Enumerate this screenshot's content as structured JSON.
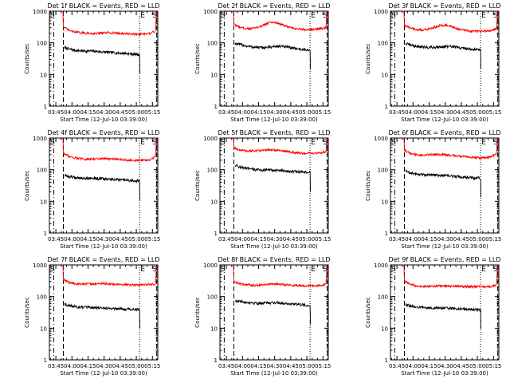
{
  "figure": {
    "colors": {
      "background": "#ffffff",
      "axes": "#000000",
      "events": "#000000",
      "lld": "#ff0000"
    },
    "markers": [
      "S",
      "E",
      "S"
    ]
  },
  "chart_data": [
    {
      "type": "line",
      "title": "Det 1f BLACK = Events, RED = LLD",
      "xlabel": "Start Time (12-Jul-10 03:39:00)",
      "ylabel": "Counts/sec",
      "x_ticks": [
        "03:45",
        "04:00",
        "04:15",
        "04:30",
        "04:45",
        "05:00",
        "05:15"
      ],
      "y_ticks": [
        "1",
        "10",
        "100",
        "1000"
      ],
      "xlim_minutes": [
        0,
        101
      ],
      "ylim": [
        1,
        1000
      ],
      "yscale": "log",
      "vlines_minutes": [
        {
          "x": 4,
          "style": "dash-dot"
        },
        {
          "x": 13,
          "style": "dashed"
        },
        {
          "x": 84,
          "style": "dotted"
        },
        {
          "x": 100,
          "style": "dashed"
        }
      ],
      "series": [
        {
          "name": "Events",
          "color": "#000000",
          "x_range": [
            14,
            84
          ],
          "profile": [
            70,
            63,
            58,
            56,
            55,
            55,
            54,
            52,
            50,
            49,
            48,
            47,
            45,
            44,
            43
          ]
        },
        {
          "name": "LLD",
          "color": "#ff0000",
          "x_range": [
            13,
            99
          ],
          "profile": [
            320,
            250,
            225,
            210,
            205,
            200,
            198,
            200,
            205,
            210,
            205,
            200,
            195,
            190,
            188,
            188,
            190,
            195,
            240
          ]
        }
      ]
    },
    {
      "type": "line",
      "title": "Det 2f BLACK = Events, RED = LLD",
      "xlabel": "Start Time (12-Jul-10 03:39:00)",
      "ylabel": "Counts/sec",
      "x_ticks": [
        "03:45",
        "04:00",
        "04:15",
        "04:30",
        "04:45",
        "05:00",
        "05:15"
      ],
      "y_ticks": [
        "1",
        "10",
        "100",
        "1000"
      ],
      "xlim_minutes": [
        0,
        101
      ],
      "ylim": [
        1,
        1000
      ],
      "yscale": "log",
      "vlines_minutes": [
        {
          "x": 4,
          "style": "dash-dot"
        },
        {
          "x": 13,
          "style": "dashed"
        },
        {
          "x": 84,
          "style": "dotted"
        },
        {
          "x": 100,
          "style": "dashed"
        }
      ],
      "series": [
        {
          "name": "Events",
          "color": "#000000",
          "x_range": [
            14,
            84
          ],
          "profile": [
            95,
            88,
            80,
            75,
            72,
            70,
            72,
            75,
            78,
            76,
            72,
            68,
            64,
            60,
            58
          ]
        },
        {
          "name": "LLD",
          "color": "#ff0000",
          "x_range": [
            13,
            99
          ],
          "profile": [
            380,
            320,
            290,
            280,
            290,
            320,
            380,
            440,
            450,
            400,
            340,
            300,
            280,
            270,
            265,
            265,
            270,
            280,
            300
          ]
        }
      ]
    },
    {
      "type": "line",
      "title": "Det 3f BLACK = Events, RED = LLD",
      "xlabel": "Start Time (12-Jul-10 03:39:00)",
      "ylabel": "Counts/sec",
      "x_ticks": [
        "03:45",
        "04:00",
        "04:15",
        "04:30",
        "04:45",
        "05:00",
        "05:15"
      ],
      "y_ticks": [
        "1",
        "10",
        "100",
        "1000"
      ],
      "xlim_minutes": [
        0,
        101
      ],
      "ylim": [
        1,
        1000
      ],
      "yscale": "log",
      "vlines_minutes": [
        {
          "x": 4,
          "style": "dash-dot"
        },
        {
          "x": 13,
          "style": "dashed"
        },
        {
          "x": 84,
          "style": "dotted"
        },
        {
          "x": 100,
          "style": "dashed"
        }
      ],
      "series": [
        {
          "name": "Events",
          "color": "#000000",
          "x_range": [
            14,
            84
          ],
          "profile": [
            95,
            85,
            78,
            74,
            72,
            72,
            74,
            76,
            76,
            74,
            70,
            67,
            64,
            62,
            60
          ]
        },
        {
          "name": "LLD",
          "color": "#ff0000",
          "x_range": [
            13,
            99
          ],
          "profile": [
            360,
            300,
            270,
            255,
            260,
            280,
            320,
            360,
            360,
            330,
            290,
            260,
            245,
            235,
            230,
            230,
            235,
            245,
            280
          ]
        }
      ]
    },
    {
      "type": "line",
      "title": "Det 4f BLACK = Events, RED = LLD",
      "xlabel": "Start Time (12-Jul-10 03:39:00)",
      "ylabel": "Counts/sec",
      "x_ticks": [
        "03:45",
        "04:00",
        "04:15",
        "04:30",
        "04:45",
        "05:00",
        "05:15"
      ],
      "y_ticks": [
        "1",
        "10",
        "100",
        "1000"
      ],
      "xlim_minutes": [
        0,
        101
      ],
      "ylim": [
        1,
        1000
      ],
      "yscale": "log",
      "vlines_minutes": [
        {
          "x": 4,
          "style": "dash-dot"
        },
        {
          "x": 13,
          "style": "dashed"
        },
        {
          "x": 84,
          "style": "dotted"
        },
        {
          "x": 100,
          "style": "dashed"
        }
      ],
      "series": [
        {
          "name": "Events",
          "color": "#000000",
          "x_range": [
            14,
            84
          ],
          "profile": [
            65,
            60,
            57,
            55,
            54,
            54,
            53,
            52,
            50,
            49,
            48,
            47,
            46,
            45,
            44
          ]
        },
        {
          "name": "LLD",
          "color": "#ff0000",
          "x_range": [
            13,
            99
          ],
          "profile": [
            330,
            270,
            240,
            225,
            215,
            215,
            220,
            225,
            225,
            220,
            215,
            210,
            205,
            200,
            198,
            198,
            200,
            205,
            260
          ]
        }
      ]
    },
    {
      "type": "line",
      "title": "Det 5f BLACK = Events, RED = LLD",
      "xlabel": "Start Time (12-Jul-10 03:39:00)",
      "ylabel": "Counts/sec",
      "x_ticks": [
        "03:45",
        "04:00",
        "04:15",
        "04:30",
        "04:45",
        "05:00",
        "05:15"
      ],
      "y_ticks": [
        "1",
        "10",
        "100",
        "1000"
      ],
      "xlim_minutes": [
        0,
        101
      ],
      "ylim": [
        1,
        1000
      ],
      "yscale": "log",
      "vlines_minutes": [
        {
          "x": 4,
          "style": "dash-dot"
        },
        {
          "x": 13,
          "style": "dashed"
        },
        {
          "x": 84,
          "style": "dotted"
        },
        {
          "x": 100,
          "style": "dashed"
        }
      ],
      "series": [
        {
          "name": "Events",
          "color": "#000000",
          "x_range": [
            14,
            84
          ],
          "profile": [
            140,
            120,
            110,
            104,
            100,
            98,
            98,
            96,
            94,
            92,
            90,
            88,
            86,
            84,
            82
          ]
        },
        {
          "name": "LLD",
          "color": "#ff0000",
          "x_range": [
            13,
            99
          ],
          "profile": [
            500,
            430,
            400,
            390,
            390,
            400,
            420,
            430,
            420,
            400,
            380,
            360,
            345,
            335,
            330,
            330,
            335,
            345,
            370
          ]
        }
      ]
    },
    {
      "type": "line",
      "title": "Det 6f BLACK = Events, RED = LLD",
      "xlabel": "Start Time (12-Jul-10 03:39:00)",
      "ylabel": "Counts/sec",
      "x_ticks": [
        "03:45",
        "04:00",
        "04:15",
        "04:30",
        "04:45",
        "05:00",
        "05:15"
      ],
      "y_ticks": [
        "1",
        "10",
        "100",
        "1000"
      ],
      "xlim_minutes": [
        0,
        101
      ],
      "ylim": [
        1,
        1000
      ],
      "yscale": "log",
      "vlines_minutes": [
        {
          "x": 4,
          "style": "dash-dot"
        },
        {
          "x": 13,
          "style": "dashed"
        },
        {
          "x": 84,
          "style": "dotted"
        },
        {
          "x": 100,
          "style": "dashed"
        }
      ],
      "series": [
        {
          "name": "Events",
          "color": "#000000",
          "x_range": [
            14,
            84
          ],
          "profile": [
            90,
            78,
            72,
            70,
            68,
            68,
            68,
            66,
            64,
            62,
            60,
            58,
            56,
            55,
            54
          ]
        },
        {
          "name": "LLD",
          "color": "#ff0000",
          "x_range": [
            13,
            99
          ],
          "profile": [
            420,
            330,
            300,
            290,
            290,
            295,
            300,
            300,
            295,
            285,
            275,
            265,
            255,
            245,
            240,
            240,
            245,
            255,
            330
          ]
        }
      ]
    },
    {
      "type": "line",
      "title": "Det 7f BLACK = Events, RED = LLD",
      "xlabel": "Start Time (12-Jul-10 03:39:00)",
      "ylabel": "Counts/sec",
      "x_ticks": [
        "03:45",
        "04:00",
        "04:15",
        "04:30",
        "04:45",
        "05:00",
        "05:15"
      ],
      "y_ticks": [
        "1",
        "10",
        "100",
        "1000"
      ],
      "xlim_minutes": [
        0,
        101
      ],
      "ylim": [
        1,
        1000
      ],
      "yscale": "log",
      "vlines_minutes": [
        {
          "x": 4,
          "style": "dash-dot"
        },
        {
          "x": 13,
          "style": "dashed"
        },
        {
          "x": 84,
          "style": "dotted"
        },
        {
          "x": 100,
          "style": "dashed"
        }
      ],
      "series": [
        {
          "name": "Events",
          "color": "#000000",
          "x_range": [
            14,
            84
          ],
          "profile": [
            58,
            52,
            48,
            46,
            45,
            45,
            44,
            44,
            43,
            42,
            42,
            41,
            40,
            40,
            39
          ]
        },
        {
          "name": "LLD",
          "color": "#ff0000",
          "x_range": [
            13,
            99
          ],
          "profile": [
            340,
            280,
            260,
            250,
            248,
            250,
            255,
            258,
            255,
            250,
            245,
            240,
            238,
            236,
            235,
            235,
            238,
            242,
            250
          ]
        }
      ]
    },
    {
      "type": "line",
      "title": "Det 8f BLACK = Events, RED = LLD",
      "xlabel": "Start Time (12-Jul-10 03:39:00)",
      "ylabel": "Counts/sec",
      "x_ticks": [
        "03:45",
        "04:00",
        "04:15",
        "04:30",
        "04:45",
        "05:00",
        "05:15"
      ],
      "y_ticks": [
        "1",
        "10",
        "100",
        "1000"
      ],
      "xlim_minutes": [
        0,
        101
      ],
      "ylim": [
        1,
        1000
      ],
      "yscale": "log",
      "vlines_minutes": [
        {
          "x": 4,
          "style": "dash-dot"
        },
        {
          "x": 13,
          "style": "dashed"
        },
        {
          "x": 84,
          "style": "dotted"
        },
        {
          "x": 100,
          "style": "dashed"
        }
      ],
      "series": [
        {
          "name": "Events",
          "color": "#000000",
          "x_range": [
            14,
            84
          ],
          "profile": [
            75,
            70,
            66,
            64,
            62,
            62,
            63,
            64,
            64,
            62,
            60,
            58,
            56,
            54,
            52
          ]
        },
        {
          "name": "LLD",
          "color": "#ff0000",
          "x_range": [
            13,
            99
          ],
          "profile": [
            300,
            260,
            240,
            232,
            230,
            232,
            240,
            250,
            250,
            245,
            238,
            230,
            225,
            222,
            220,
            220,
            222,
            228,
            240
          ]
        }
      ]
    },
    {
      "type": "line",
      "title": "Det 9f BLACK = Events, RED = LLD",
      "xlabel": "Start Time (12-Jul-10 03:39:00)",
      "ylabel": "Counts/sec",
      "x_ticks": [
        "03:45",
        "04:00",
        "04:15",
        "04:30",
        "04:45",
        "05:00",
        "05:15"
      ],
      "y_ticks": [
        "1",
        "10",
        "100",
        "1000"
      ],
      "xlim_minutes": [
        0,
        101
      ],
      "ylim": [
        1,
        1000
      ],
      "yscale": "log",
      "vlines_minutes": [
        {
          "x": 4,
          "style": "dash-dot"
        },
        {
          "x": 13,
          "style": "dashed"
        },
        {
          "x": 84,
          "style": "dotted"
        },
        {
          "x": 100,
          "style": "dashed"
        }
      ],
      "series": [
        {
          "name": "Events",
          "color": "#000000",
          "x_range": [
            14,
            84
          ],
          "profile": [
            55,
            50,
            47,
            45,
            44,
            44,
            44,
            43,
            42,
            42,
            41,
            40,
            40,
            39,
            38
          ]
        },
        {
          "name": "LLD",
          "color": "#ff0000",
          "x_range": [
            13,
            99
          ],
          "profile": [
            300,
            250,
            225,
            215,
            210,
            210,
            212,
            215,
            215,
            212,
            210,
            208,
            206,
            205,
            205,
            205,
            206,
            210,
            230
          ]
        }
      ]
    }
  ]
}
